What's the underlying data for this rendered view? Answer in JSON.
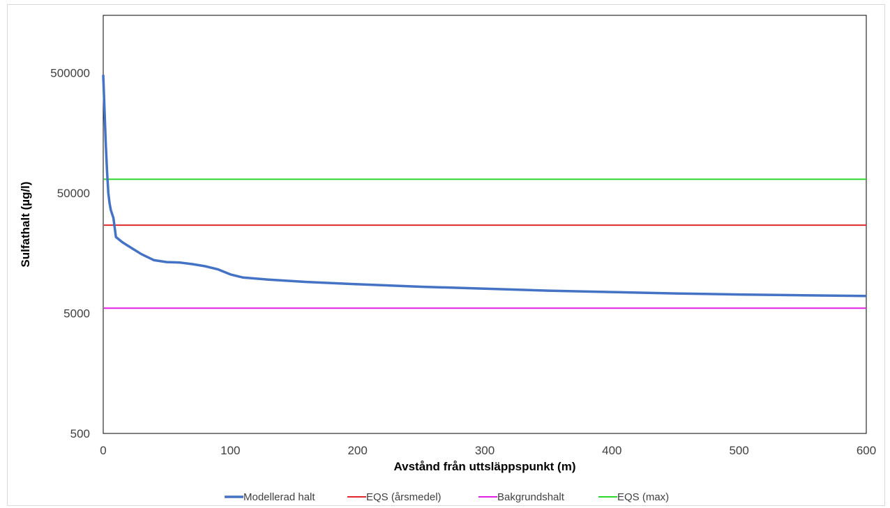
{
  "chart_data": {
    "type": "line",
    "xlabel": "Avstånd från uttsläppspunkt (m)",
    "ylabel": "Sulfathalt (µg/l)",
    "x_ticks": [
      0,
      100,
      200,
      300,
      400,
      500,
      600
    ],
    "x_tick_labels": [
      "0",
      "100",
      "200",
      "300",
      "400",
      "500",
      "600"
    ],
    "xlim": [
      0,
      600
    ],
    "y_scale": "log",
    "ylim": [
      500,
      1500000
    ],
    "y_ticks": [
      500,
      5000,
      50000,
      500000
    ],
    "y_tick_labels": [
      "500",
      "5000",
      "50000",
      "500000"
    ],
    "grid": false,
    "legend_position": "bottom",
    "series": [
      {
        "name": "Modellerad halt",
        "color": "#4472C4",
        "kind": "curve",
        "x": [
          0,
          1,
          2,
          3,
          4,
          5,
          6,
          8,
          10,
          15,
          20,
          30,
          40,
          50,
          60,
          70,
          80,
          90,
          100,
          110,
          130,
          160,
          200,
          250,
          300,
          350,
          400,
          450,
          500,
          550,
          600
        ],
        "y": [
          480000,
          250000,
          130000,
          75000,
          50000,
          41000,
          36000,
          31000,
          21500,
          19500,
          18000,
          15500,
          13800,
          13300,
          13200,
          12800,
          12300,
          11600,
          10500,
          9900,
          9500,
          9100,
          8700,
          8300,
          8000,
          7700,
          7500,
          7300,
          7150,
          7050,
          6950
        ]
      },
      {
        "name": "EQS (årsmedel)",
        "color": "#E0282A",
        "kind": "constant",
        "value": 27000
      },
      {
        "name": "Bakgrundshalt",
        "color": "#E020E0",
        "kind": "constant",
        "value": 5500
      },
      {
        "name": "EQS (max)",
        "color": "#2DD82D",
        "kind": "constant",
        "value": 65000
      }
    ]
  }
}
